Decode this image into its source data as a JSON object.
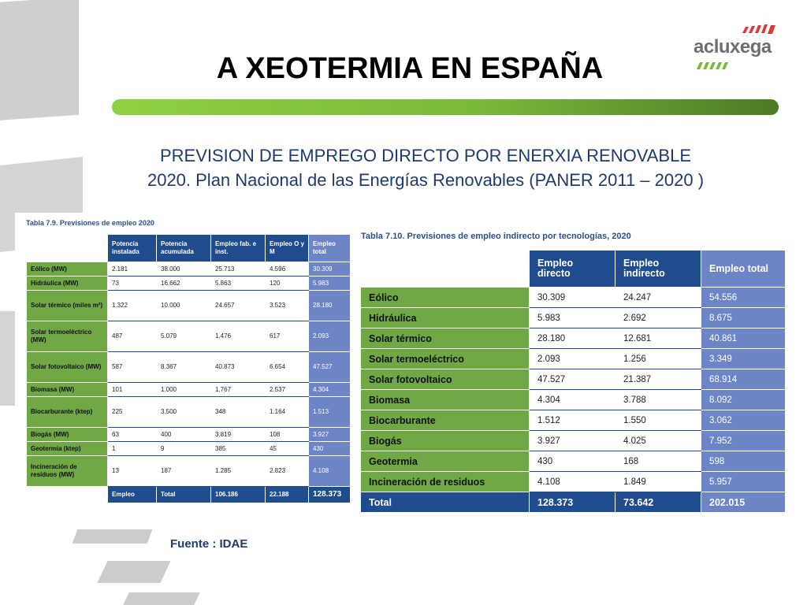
{
  "slide": {
    "title": "A XEOTERMIA EN ESPAÑA",
    "subtitle_line1": "PREVISION DE EMPREGO DIRECTO POR ENERXIA RENOVABLE",
    "subtitle_line2": "2020. Plan Nacional de las Energías Renovables  (PANER 2011 – 2020 )",
    "logo_text": "acluxega",
    "source": "Fuente : IDAE",
    "colors": {
      "accent_green": "#7ab93a",
      "table_blue": "#1f4c8c",
      "table_light_blue": "#6d84c6",
      "title_blue": "#1f3a6e"
    }
  },
  "table_left": {
    "caption": "Tabla 7.9. Previsiones de empleo 2020",
    "headers": [
      "",
      "Potencia instalada",
      "Potencia acumulada",
      "Empleo fab. e inst.",
      "Empleo O y M",
      "Empleo total"
    ],
    "rows": [
      [
        "Eólico (MW)",
        "2.181",
        "38.000",
        "25.713",
        "4.596",
        "30.309"
      ],
      [
        "Hidráulica (MW)",
        "73",
        "16.662",
        "5.863",
        "120",
        "5.983"
      ],
      [
        "Solar térmico (miles m²)",
        "1.322",
        "10.000",
        "24.657",
        "3.523",
        "28.180"
      ],
      [
        "Solar termoeléctrico (MW)",
        "487",
        "5.079",
        "1.476",
        "617",
        "2.093"
      ],
      [
        "Solar fotovoltaico (MW)",
        "587",
        "8.367",
        "40.873",
        "6.654",
        "47.527"
      ],
      [
        "Biomasa (MW)",
        "101",
        "1.000",
        "1.767",
        "2.537",
        "4.304"
      ],
      [
        "Biocarburante (ktep)",
        "225",
        "3.500",
        "348",
        "1.164",
        "1.513"
      ],
      [
        "Biogás (MW)",
        "63",
        "400",
        "3.819",
        "108",
        "3.927"
      ],
      [
        "Geotermia (ktep)",
        "1",
        "9",
        "385",
        "45",
        "430"
      ],
      [
        "Incineración de residuos (MW)",
        "13",
        "187",
        "1.285",
        "2.823",
        "4.108"
      ]
    ],
    "total": [
      "",
      "Empleo",
      "Total",
      "106.186",
      "22.188",
      "128.373"
    ]
  },
  "table_right": {
    "caption": "Tabla 7.10. Previsiones de empleo indirecto por tecnologías, 2020",
    "headers": [
      "",
      "Empleo directo",
      "Empleo indirecto",
      "Empleo total"
    ],
    "rows": [
      [
        "Eólico",
        "30.309",
        "24.247",
        "54.556"
      ],
      [
        "Hidráulica",
        "5.983",
        "2.692",
        "8.675"
      ],
      [
        "Solar térmico",
        "28.180",
        "12.681",
        "40.861"
      ],
      [
        "Solar termoeléctrico",
        "2.093",
        "1.256",
        "3.349"
      ],
      [
        "Solar fotovoltaico",
        "47.527",
        "21.387",
        "68.914"
      ],
      [
        "Biomasa",
        "4.304",
        "3.788",
        "8.092"
      ],
      [
        "Biocarburante",
        "1.512",
        "1.550",
        "3.062"
      ],
      [
        "Biogás",
        "3.927",
        "4.025",
        "7.952"
      ],
      [
        "Geotermia",
        "430",
        "168",
        "598"
      ],
      [
        "Incineración de residuos",
        "4.108",
        "1.849",
        "5.957"
      ]
    ],
    "total": [
      "Total",
      "128.373",
      "73.642",
      "202.015"
    ]
  }
}
